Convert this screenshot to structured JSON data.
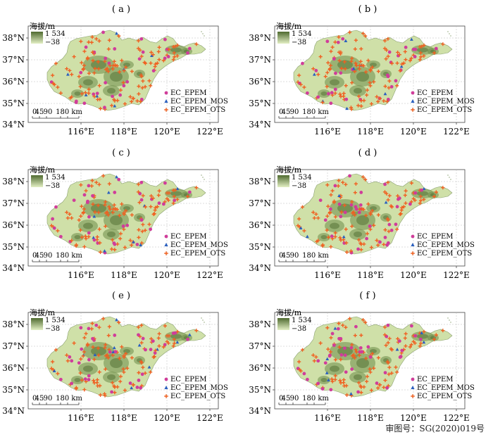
{
  "panels": [
    {
      "label": "( a )"
    },
    {
      "label": "( b )"
    },
    {
      "label": "( c )"
    },
    {
      "label": "( d )"
    },
    {
      "label": "( e )"
    },
    {
      "label": "( f )"
    }
  ],
  "elevation_legend": {
    "title": "海拔/m",
    "max": "1 534",
    "min": "−38"
  },
  "lat_labels": [
    "38°N",
    "37°N",
    "36°N",
    "35°N",
    "34°N"
  ],
  "lon_labels": [
    "116°E",
    "118°E",
    "120°E",
    "122°E"
  ],
  "scale_bar": {
    "ticks": [
      "0",
      "45",
      "90",
      "180 km"
    ]
  },
  "station_legend": [
    {
      "name": "EC_EPEM",
      "color": "#d03d9a",
      "symbol": "circle"
    },
    {
      "name": "EC_EPEM_MOS",
      "color": "#2a5fbf",
      "symbol": "triangle"
    },
    {
      "name": "EC_EPEM_OTS",
      "color": "#f06020",
      "symbol": "cross"
    }
  ],
  "colors": {
    "land": "#cfe0a8",
    "mountain": "#6e8c48",
    "grid": "#bcbcbc"
  },
  "footer": "审图号：SG(2020)019号"
}
